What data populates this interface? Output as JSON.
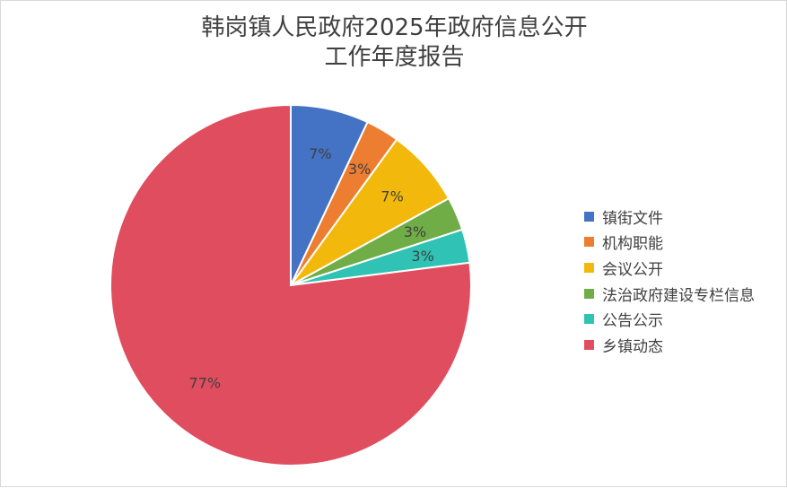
{
  "chart_data": {
    "type": "pie",
    "title_line1": "韩岗镇人民政府2025年政府信息公开",
    "title_line2": "工作年度报告",
    "categories": [
      "镇街文件",
      "机构职能",
      "会议公开",
      "法治政府建设专栏信息",
      "公告公示",
      "乡镇动态"
    ],
    "values": [
      7,
      3,
      7,
      3,
      3,
      77
    ],
    "labels": [
      "7%",
      "3%",
      "7%",
      "3%",
      "3%",
      "77%"
    ],
    "colors": [
      "#4472c4",
      "#ed7d31",
      "#f2b90c",
      "#70ad47",
      "#2fc2b5",
      "#e04d5e"
    ],
    "start_angle": "12 o'clock",
    "direction": "clockwise",
    "legend_position": "right"
  }
}
